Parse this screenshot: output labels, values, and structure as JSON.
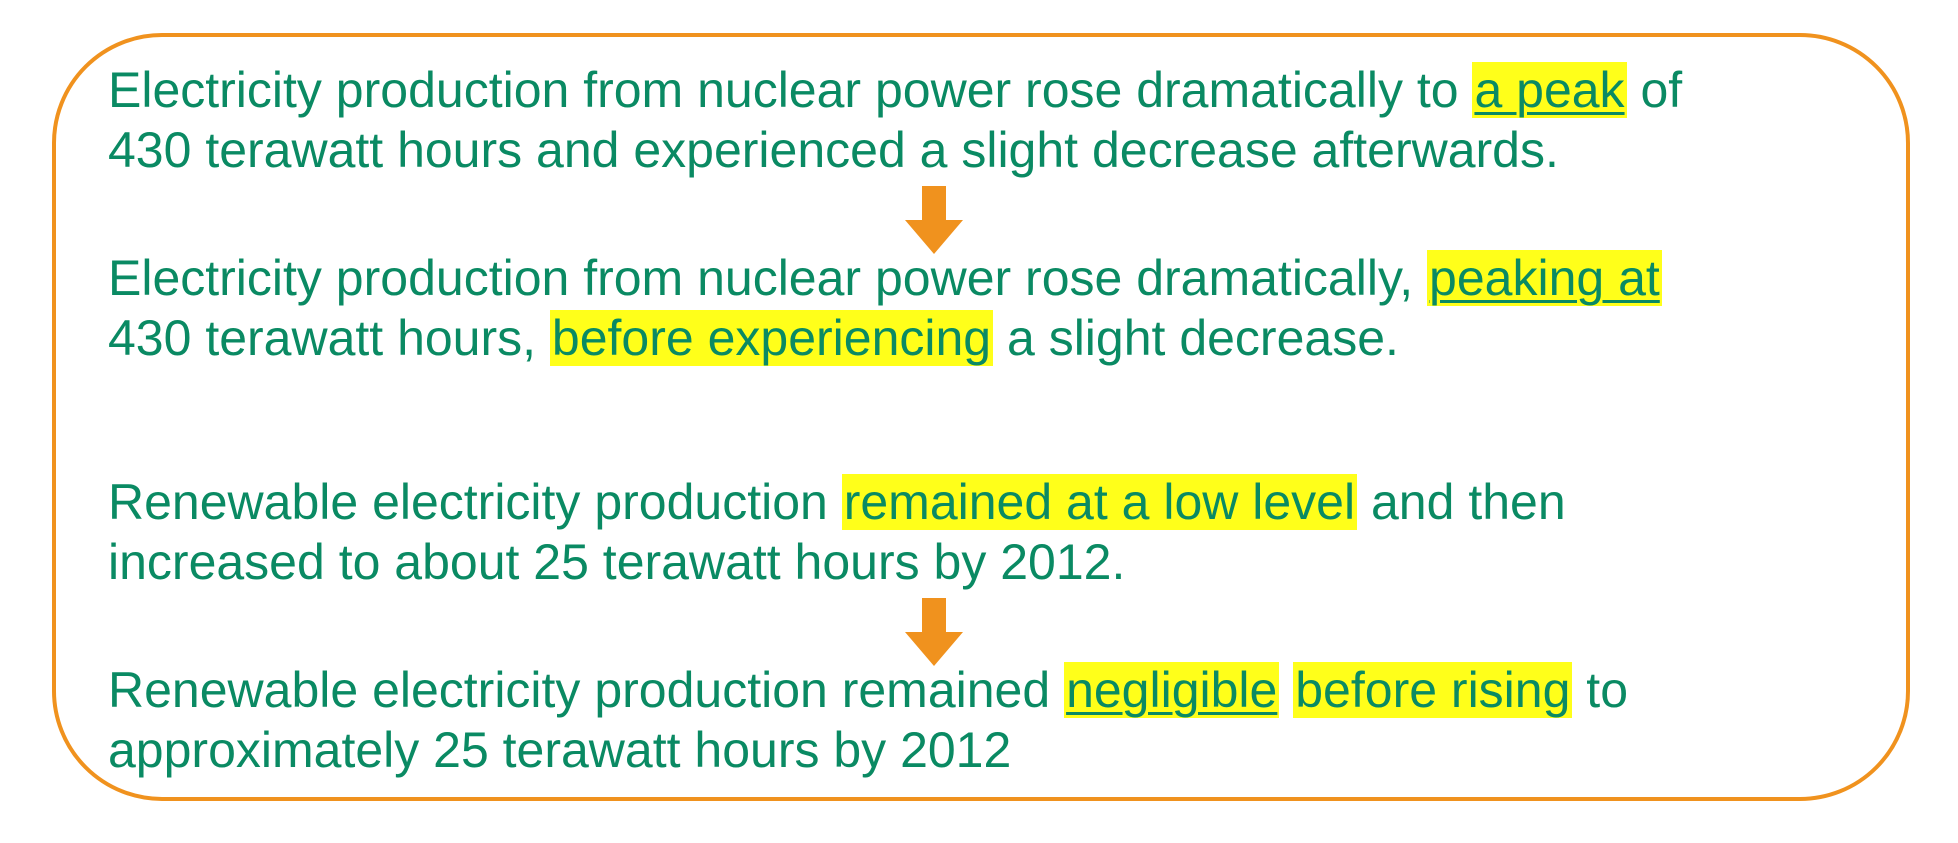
{
  "colors": {
    "text": "#0A8A63",
    "highlight": "#FFFF1A",
    "frame": "#F0921E",
    "arrow": "#F0921E"
  },
  "icons": {
    "transition_arrow": "down-arrow-icon"
  },
  "nuclear": {
    "original": {
      "l1_a": "Electricity production from nuclear power rose dramatically to ",
      "l1_hl": "a peak",
      "l1_b": " of",
      "l2": "430 terawatt hours and experienced a slight decrease afterwards."
    },
    "revised": {
      "l1_a": "Electricity production from nuclear power rose dramatically, ",
      "l1_hl": "peaking at",
      "l2_a": "430 terawatt hours, ",
      "l2_hl": "before experiencing",
      "l2_b": " a slight decrease."
    }
  },
  "renewable": {
    "original": {
      "l1_a": "Renewable electricity production ",
      "l1_hl": "remained at a low level",
      "l1_b": " and then",
      "l2": "increased to about 25 terawatt hours by 2012."
    },
    "revised": {
      "l1_a": "Renewable electricity production remained ",
      "l1_hl1": "negligible",
      "l1_gap": " ",
      "l1_hl2": "before rising",
      "l1_b": " to",
      "l2": "approximately 25 terawatt hours by 2012"
    }
  }
}
